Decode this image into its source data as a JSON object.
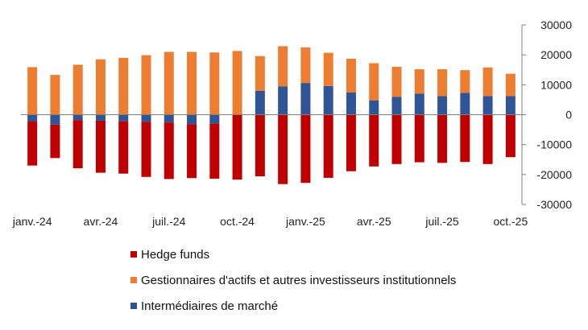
{
  "chart_data": {
    "type": "bar",
    "stacked": true,
    "categories": [
      "janv.-24",
      "févr.-24",
      "mars-24",
      "avr.-24",
      "mai-24",
      "juin-24",
      "juil.-24",
      "août-24",
      "sept.-24",
      "oct.-24",
      "nov.-24",
      "déc.-24",
      "janv.-25",
      "févr.-25",
      "mars-25",
      "avr.-25",
      "mai-25",
      "juin-25",
      "juil.-25",
      "août-25",
      "sept.-25",
      "oct.-25"
    ],
    "x_tick_labels": [
      "janv.-24",
      "",
      "",
      "avr.-24",
      "",
      "",
      "juil.-24",
      "",
      "",
      "oct.-24",
      "",
      "",
      "janv.-25",
      "",
      "",
      "avr.-25",
      "",
      "",
      "juil.-25",
      "",
      "",
      "oct.-25"
    ],
    "y_ticks": [
      "30000",
      "20000",
      "10000",
      "0",
      "-10000",
      "-20000",
      "-30000"
    ],
    "ylim": [
      -30000,
      30000
    ],
    "y_axis_position": "right",
    "grid": false,
    "legend_position": "bottom",
    "series": [
      {
        "name": "Intermédiaires de marché",
        "color": "#2f5597",
        "values": [
          -2300,
          -3300,
          -1800,
          -2000,
          -2200,
          -2400,
          -2600,
          -3200,
          -3000,
          0,
          8000,
          9500,
          10600,
          9600,
          7400,
          4800,
          6000,
          7000,
          6200,
          7300,
          6200,
          6200
        ]
      },
      {
        "name": "Gestionnaires d'actifs et autres investisseurs institutionnels",
        "color": "#ed7d31",
        "values": [
          15900,
          13300,
          16700,
          18500,
          19000,
          19900,
          21000,
          21000,
          20800,
          21300,
          11600,
          13400,
          11900,
          11100,
          11300,
          12400,
          10000,
          8200,
          9000,
          7600,
          9600,
          7500
        ]
      },
      {
        "name": "Hedge funds",
        "color": "#c00000",
        "values": [
          -14700,
          -11200,
          -16100,
          -17400,
          -17500,
          -18400,
          -18900,
          -18000,
          -18400,
          -21700,
          -20600,
          -23200,
          -22800,
          -21100,
          -18900,
          -17300,
          -16500,
          -15900,
          -16100,
          -15800,
          -16500,
          -14200
        ]
      }
    ],
    "legend": [
      {
        "label": "Hedge funds",
        "color": "#c00000"
      },
      {
        "label": "Gestionnaires d'actifs et autres investisseurs institutionnels",
        "color": "#ed7d31"
      },
      {
        "label": "Intermédiaires de marché",
        "color": "#2f5597"
      }
    ]
  }
}
